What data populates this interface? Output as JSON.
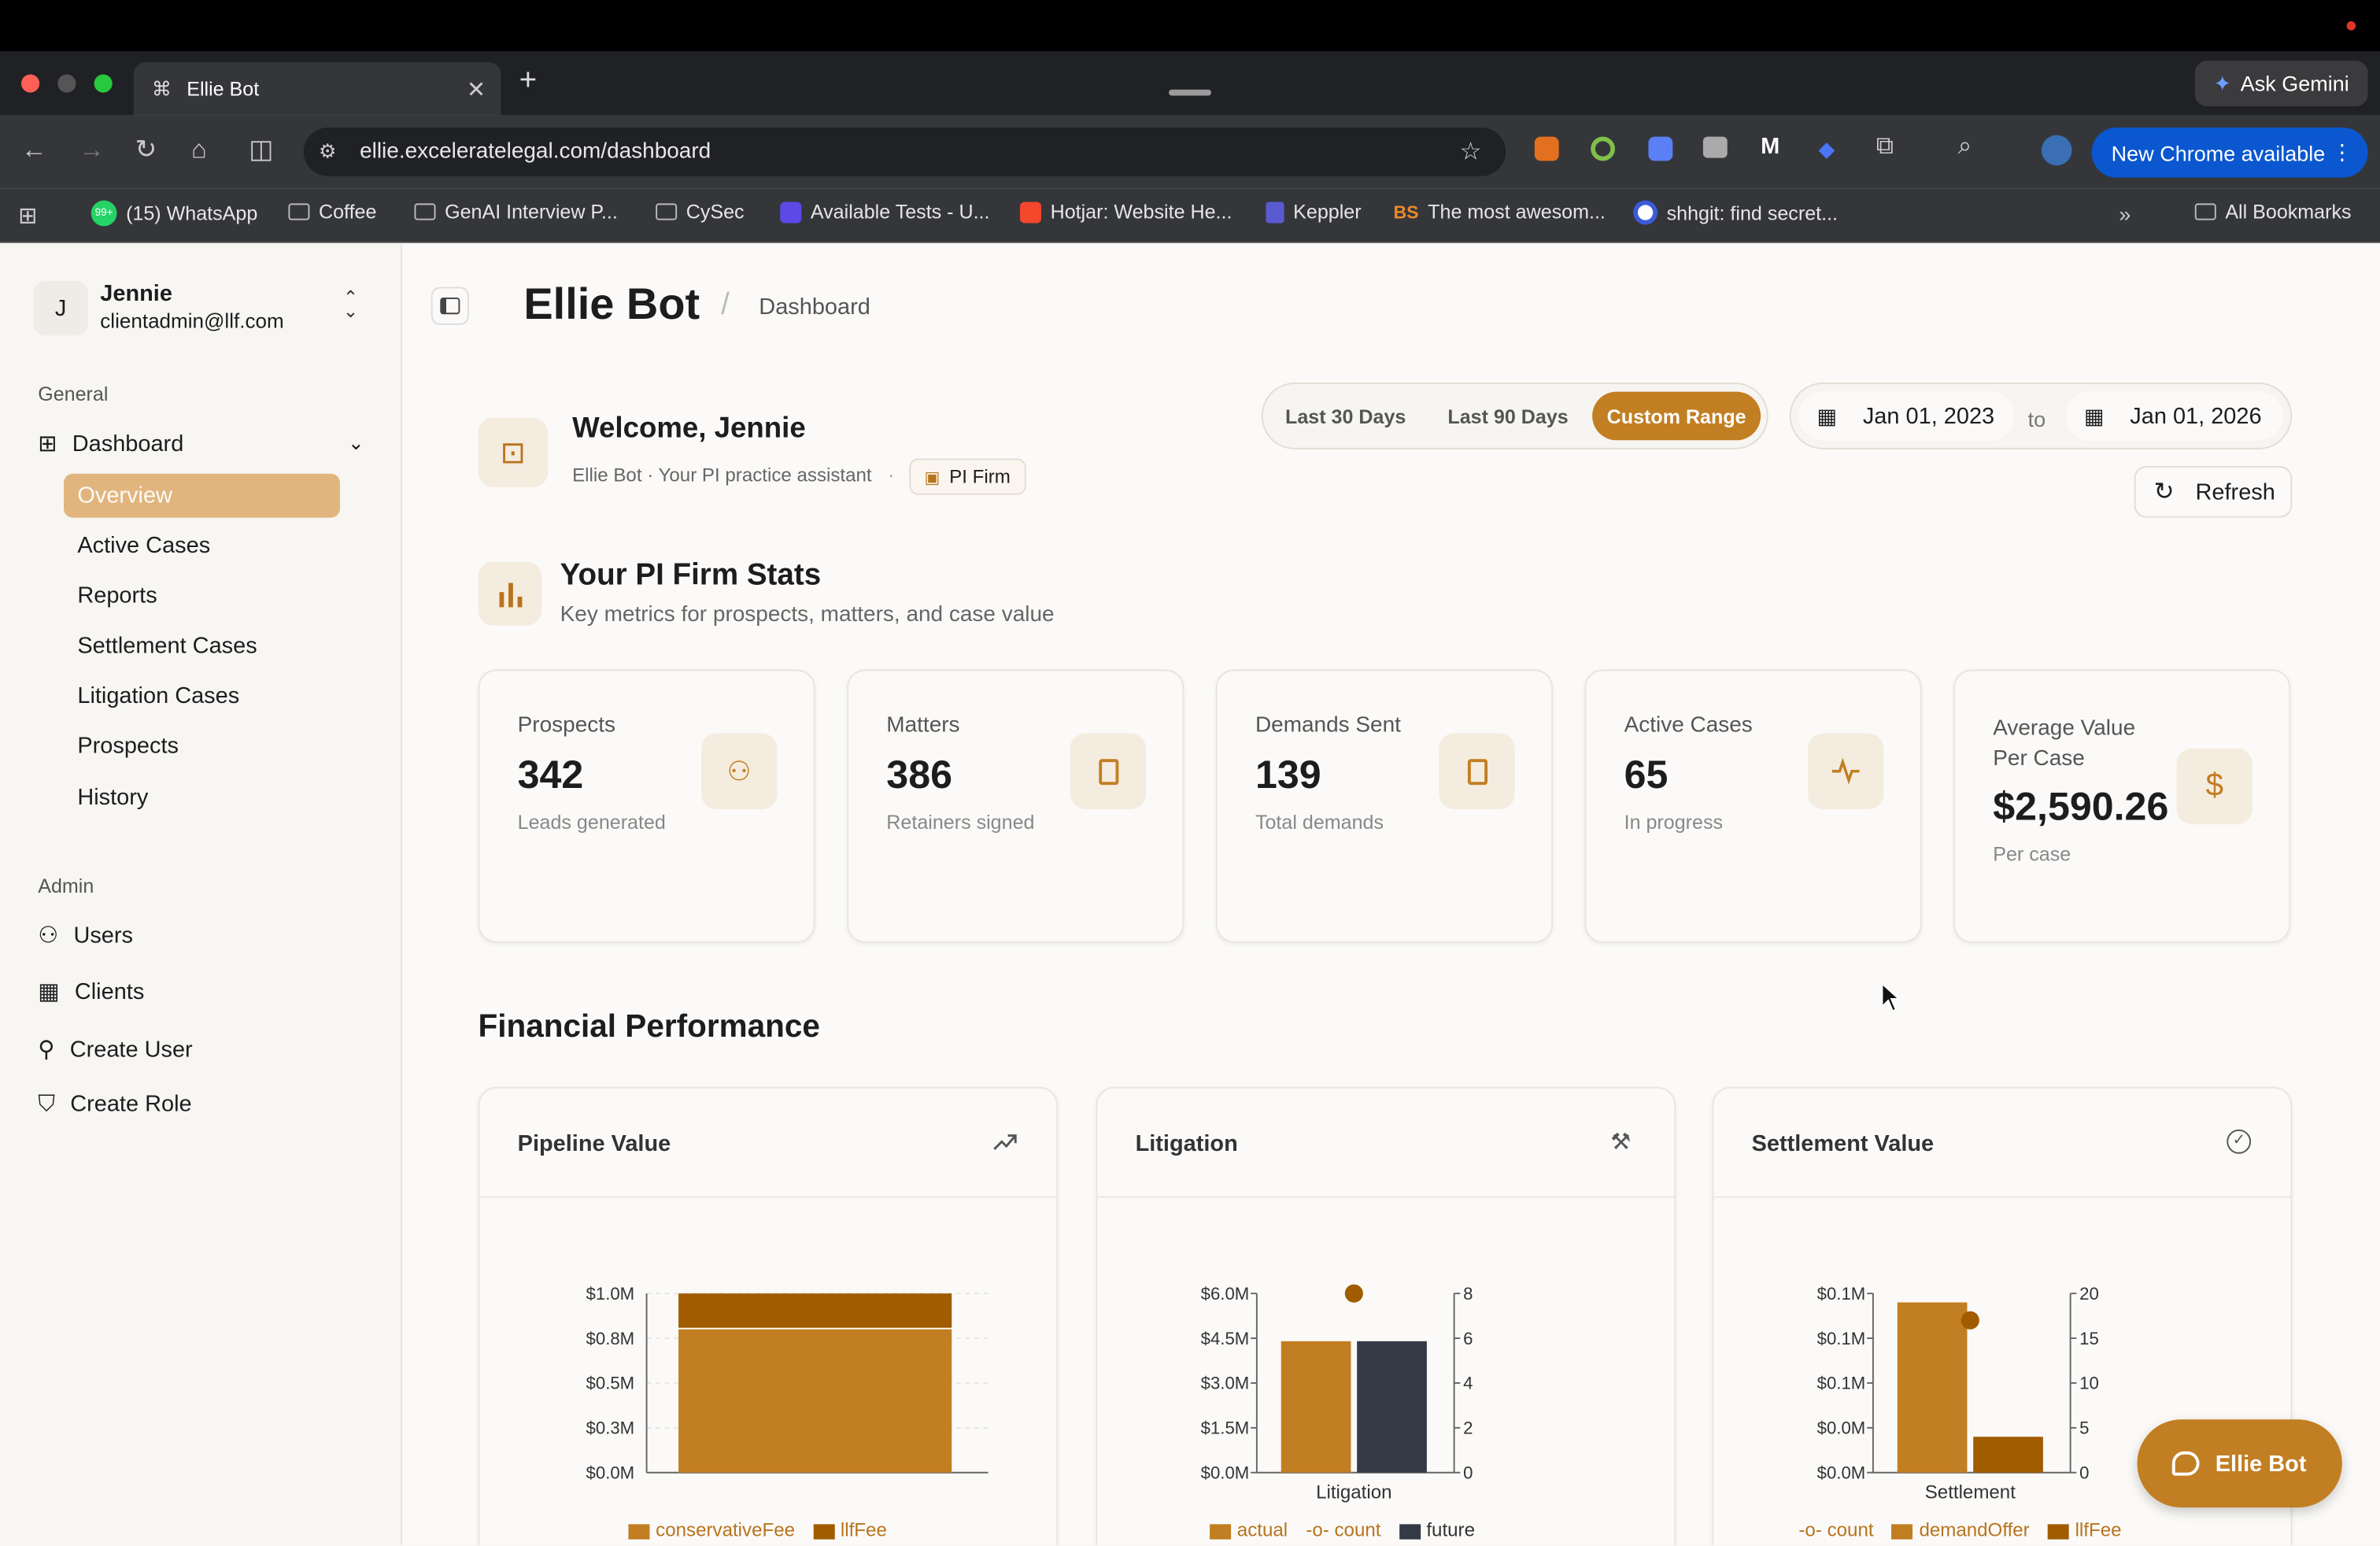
{
  "browser": {
    "tab_title": "Ellie Bot",
    "url": "ellie.exceleratelegal.com/dashboard",
    "ask_gemini": "Ask Gemini",
    "update_label": "New Chrome available",
    "bookmarks": [
      "(15) WhatsApp",
      "Coffee",
      "GenAI Interview P...",
      "CySec",
      "Available Tests - U...",
      "Hotjar: Website He...",
      "Keppler",
      "The most awesom...",
      "shhgit: find secret..."
    ],
    "all_bookmarks": "All Bookmarks",
    "whatsapp_badge": "99+"
  },
  "user": {
    "initial": "J",
    "name": "Jennie",
    "email": "clientadmin@llf.com"
  },
  "sidebar": {
    "general_label": "General",
    "dashboard_label": "Dashboard",
    "sub_items": [
      "Overview",
      "Active Cases",
      "Reports",
      "Settlement Cases",
      "Litigation Cases",
      "Prospects",
      "History"
    ],
    "admin_label": "Admin",
    "admin_items": [
      "Users",
      "Clients",
      "Create User",
      "Create Role"
    ]
  },
  "header": {
    "title": "Ellie Bot",
    "separator": "/",
    "crumb": "Dashboard"
  },
  "welcome": {
    "title": "Welcome, Jennie",
    "subtitle": "Ellie Bot · Your PI practice assistant",
    "dot": "·",
    "badge": "PI Firm"
  },
  "range": {
    "options": [
      "Last 30 Days",
      "Last 90 Days",
      "Custom Range"
    ],
    "active": "Custom Range",
    "from": "Jan 01, 2023",
    "to_label": "to",
    "to": "Jan 01, 2026",
    "refresh": "Refresh"
  },
  "stats_header": {
    "title": "Your PI Firm Stats",
    "subtitle": "Key metrics for prospects, matters, and case value"
  },
  "stats": [
    {
      "label": "Prospects",
      "value": "342",
      "sub": "Leads generated",
      "icon": "users-icon"
    },
    {
      "label": "Matters",
      "value": "386",
      "sub": "Retainers signed",
      "icon": "document-icon"
    },
    {
      "label": "Demands Sent",
      "value": "139",
      "sub": "Total demands",
      "icon": "document-icon"
    },
    {
      "label": "Active Cases",
      "value": "65",
      "sub": "In progress",
      "icon": "activity-icon"
    },
    {
      "label": "Average Value Per Case",
      "label_l1": "Average Value",
      "label_l2": "Per Case",
      "value": "$2,590.26",
      "sub": "Per case",
      "icon": "dollar-icon"
    }
  ],
  "financial": {
    "title": "Financial Performance"
  },
  "colors": {
    "accent": "#c27e22",
    "accent_dark": "#a15c00",
    "dark": "#343a46"
  },
  "charts": {
    "pipeline_title": "Pipeline Value",
    "litigation_title": "Litigation",
    "settlement_title": "Settlement Value"
  },
  "chat_button": "Ellie Bot",
  "chart_data": [
    {
      "type": "bar",
      "title": "Pipeline Value",
      "stacked": true,
      "categories": [
        ""
      ],
      "series": [
        {
          "name": "conservativeFee",
          "values": [
            800000
          ]
        },
        {
          "name": "llfFee",
          "values": [
            200000
          ]
        }
      ],
      "yticks": [
        "$0.0M",
        "$0.3M",
        "$0.5M",
        "$0.8M",
        "$1.0M"
      ],
      "ylim": [
        0,
        1000000
      ],
      "grid": true
    },
    {
      "type": "bar",
      "title": "Litigation",
      "categories": [
        "Litigation"
      ],
      "series": [
        {
          "name": "actual",
          "values": [
            4400000
          ]
        },
        {
          "name": "count",
          "values": [
            8
          ]
        },
        {
          "name": "future",
          "values": [
            4400000
          ]
        }
      ],
      "yticks_left": [
        "$0.0M",
        "$1.5M",
        "$3.0M",
        "$4.5M",
        "$6.0M"
      ],
      "yticks_right": [
        "0",
        "2",
        "4",
        "6",
        "8"
      ],
      "ylim_left": [
        0,
        6000000
      ],
      "ylim_right": [
        0,
        8
      ]
    },
    {
      "type": "bar",
      "title": "Settlement Value",
      "categories": [
        "Settlement"
      ],
      "series": [
        {
          "name": "count",
          "values": [
            17
          ]
        },
        {
          "name": "demandOffer",
          "values": [
            95000
          ]
        },
        {
          "name": "llfFee",
          "values": [
            20000
          ]
        }
      ],
      "yticks_left": [
        "$0.0M",
        "$0.0M",
        "$0.1M",
        "$0.1M",
        "$0.1M"
      ],
      "yticks_right": [
        "0",
        "5",
        "10",
        "15",
        "20"
      ],
      "ylim_left": [
        0,
        100000
      ],
      "ylim_right": [
        0,
        20
      ]
    }
  ]
}
